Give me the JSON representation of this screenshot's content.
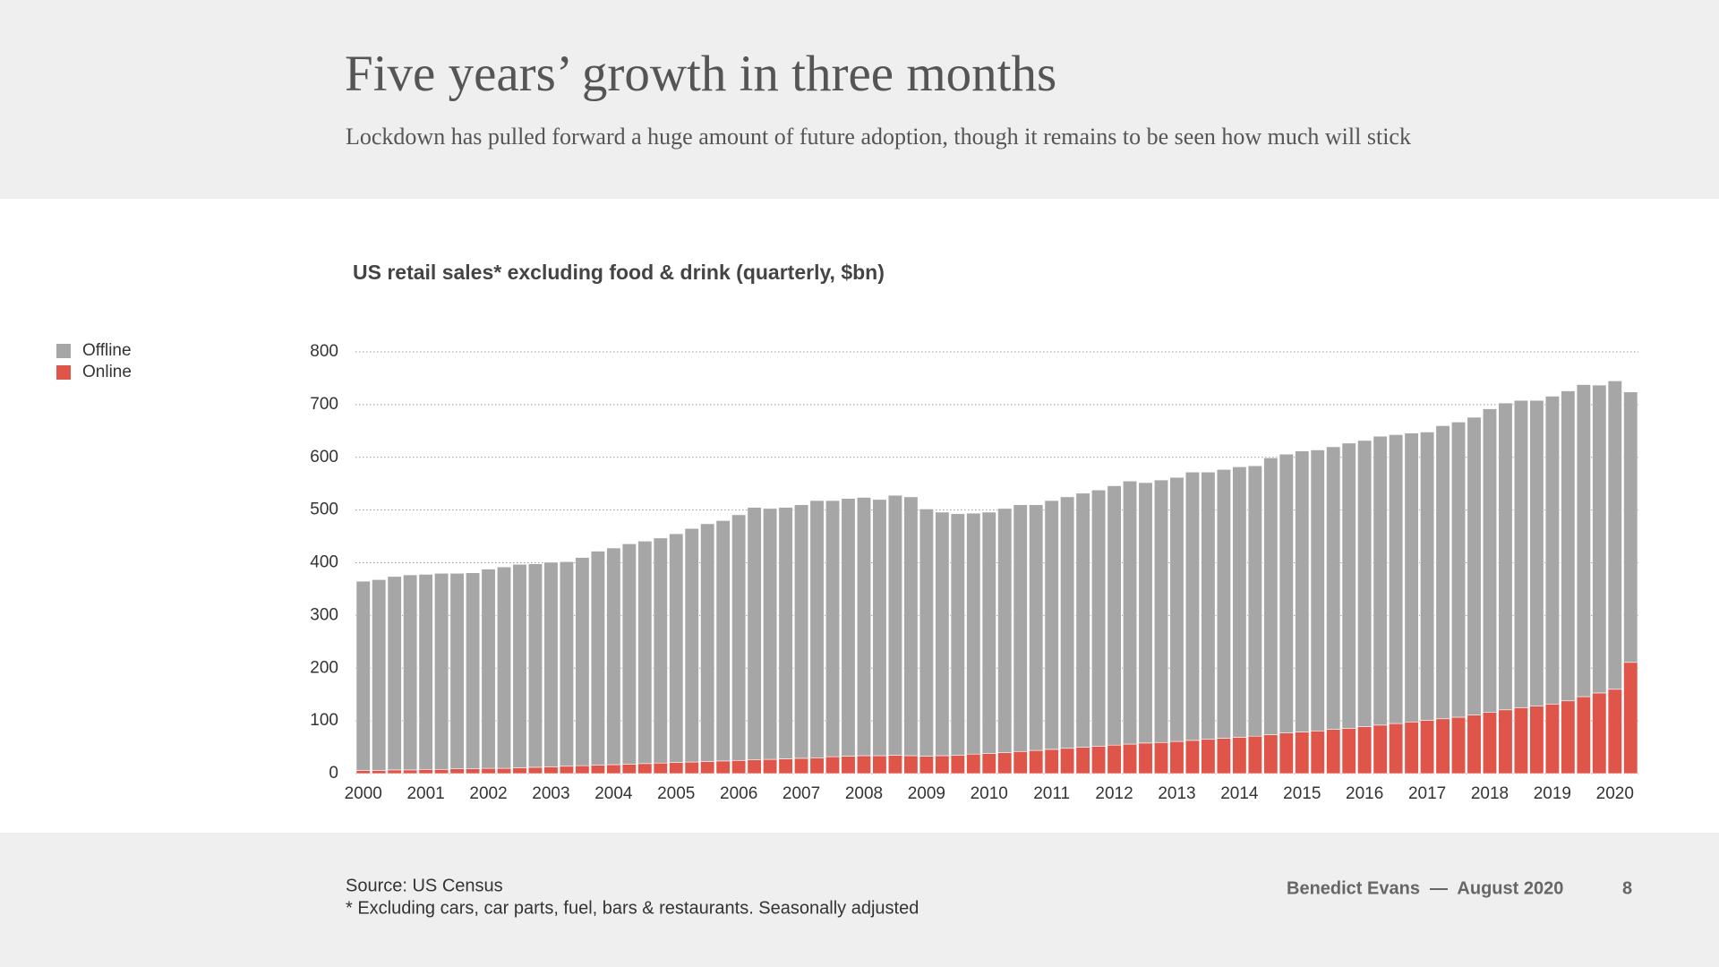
{
  "header": {
    "title": "Five years’ growth in three months",
    "subtitle": "Lockdown has pulled forward a huge amount of future adoption, though it remains to be seen how much will stick"
  },
  "chart_data": {
    "type": "stacked_bar",
    "title": "US retail sales* excluding food & drink (quarterly, $bn)",
    "categories": [
      "2000",
      null,
      null,
      null,
      "2001",
      null,
      null,
      null,
      "2002",
      null,
      null,
      null,
      "2003",
      null,
      null,
      null,
      "2004",
      null,
      null,
      null,
      "2005",
      null,
      null,
      null,
      "2006",
      null,
      null,
      null,
      "2007",
      null,
      null,
      null,
      "2008",
      null,
      null,
      null,
      "2009",
      null,
      null,
      null,
      "2010",
      null,
      null,
      null,
      "2011",
      null,
      null,
      null,
      "2012",
      null,
      null,
      null,
      "2013",
      null,
      null,
      null,
      "2014",
      null,
      null,
      null,
      "2015",
      null,
      null,
      null,
      "2016",
      null,
      null,
      null,
      "2017",
      null,
      null,
      null,
      "2018",
      null,
      null,
      null,
      "2019",
      null,
      null,
      null,
      "2020",
      null
    ],
    "series": [
      {
        "name": "Offline",
        "color": "#a6a6a6",
        "values": [
          359,
          362,
          367,
          370,
          370,
          372,
          371,
          372,
          378,
          382,
          386,
          386,
          388,
          388,
          395,
          406,
          411,
          418,
          422,
          427,
          434,
          443,
          451,
          456,
          466,
          479,
          476,
          477,
          481,
          488,
          486,
          489,
          490,
          486,
          493,
          491,
          469,
          462,
          458,
          457,
          458,
          463,
          468,
          466,
          472,
          477,
          482,
          486,
          492,
          499,
          494,
          498,
          501,
          509,
          507,
          510,
          513,
          513,
          525,
          529,
          533,
          533,
          536,
          541,
          543,
          548,
          548,
          548,
          547,
          556,
          560,
          565,
          576,
          582,
          583,
          580,
          584,
          588,
          592,
          584,
          585,
          513
        ]
      },
      {
        "name": "Online",
        "color": "#e0554a",
        "values": [
          6,
          6,
          7,
          7,
          8,
          8,
          9,
          9,
          10,
          10,
          11,
          12,
          13,
          14,
          15,
          16,
          17,
          18,
          19,
          20,
          21,
          22,
          23,
          24,
          25,
          26,
          27,
          28,
          29,
          30,
          32,
          33,
          34,
          34,
          35,
          34,
          33,
          34,
          35,
          37,
          38,
          40,
          42,
          44,
          46,
          48,
          50,
          52,
          54,
          56,
          58,
          59,
          61,
          63,
          65,
          67,
          69,
          71,
          74,
          77,
          79,
          81,
          84,
          86,
          89,
          92,
          95,
          98,
          101,
          104,
          107,
          111,
          116,
          121,
          125,
          128,
          132,
          138,
          146,
          153,
          160,
          211
        ]
      }
    ],
    "ylim": [
      0,
      800
    ],
    "yticks": [
      0,
      100,
      200,
      300,
      400,
      500,
      600,
      700,
      800
    ],
    "grid": true,
    "legend": "left"
  },
  "footer": {
    "source": "Source: US Census",
    "note": "* Excluding cars, car parts, fuel, bars & restaurants. Seasonally adjusted",
    "author": "Benedict Evans  —  August 2020",
    "page": "8"
  }
}
